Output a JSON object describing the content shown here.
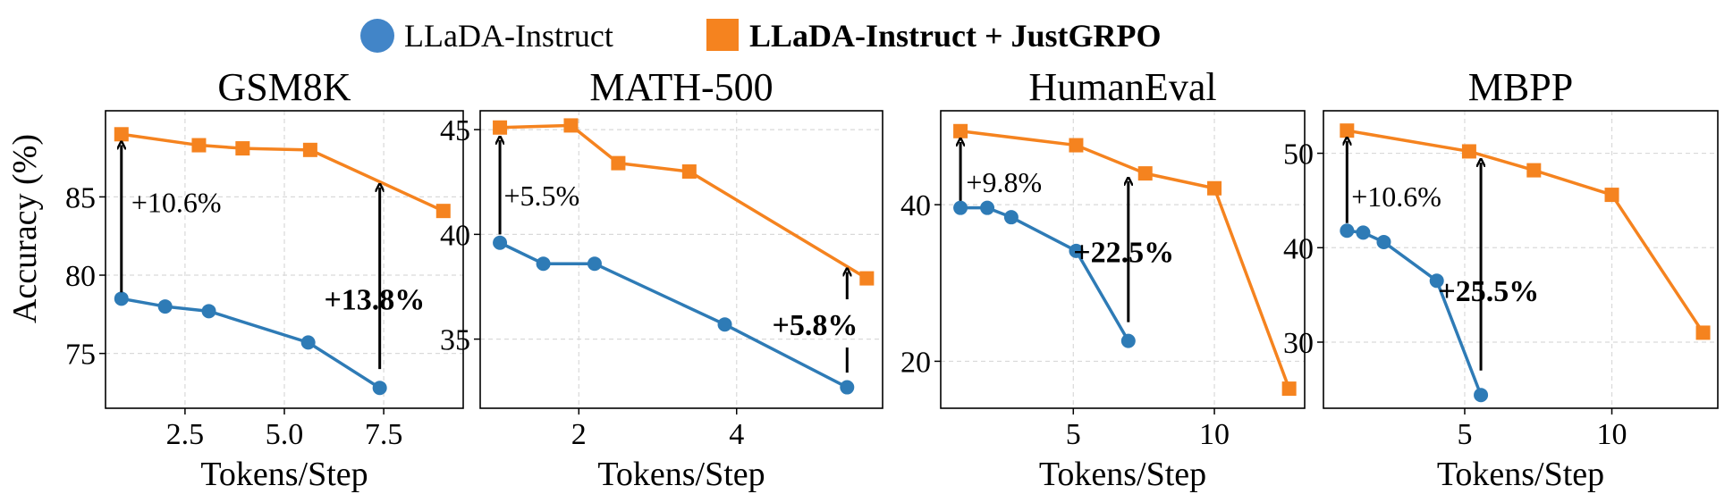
{
  "colors": {
    "base": "#2e7bb6",
    "grpo": "#f5831f",
    "legend_base": "#4285c8",
    "grid": "#d9d9d9",
    "arrow": "#000000"
  },
  "legend": {
    "items": [
      {
        "label": "LLaDA-Instruct",
        "marker": "circle",
        "bold": false
      },
      {
        "label": "LLaDA-Instruct + JustGRPO",
        "marker": "square",
        "bold": true
      }
    ]
  },
  "y_axis_label": "Accuracy (%)",
  "chart_data": [
    {
      "type": "line",
      "title": "GSM8K",
      "xlabel": "Tokens/Step",
      "ylabel": "Accuracy (%)",
      "xlim": [
        0.5,
        9.5
      ],
      "ylim": [
        71.5,
        90.5
      ],
      "xticks": [
        2.5,
        5.0,
        7.5
      ],
      "xticklabels": [
        "2.5",
        "5.0",
        "7.5"
      ],
      "yticks": [
        75,
        80,
        85
      ],
      "yticklabels": [
        "75",
        "80",
        "85"
      ],
      "grid": true,
      "series": [
        {
          "name": "LLaDA-Instruct",
          "marker": "circle",
          "x": [
            0.9,
            2.0,
            3.1,
            5.6,
            7.4
          ],
          "y": [
            78.5,
            78.0,
            77.7,
            75.7,
            72.8
          ]
        },
        {
          "name": "LLaDA-Instruct + JustGRPO",
          "marker": "square",
          "x": [
            0.9,
            2.85,
            3.95,
            5.65,
            9.0
          ],
          "y": [
            89.0,
            88.3,
            88.1,
            88.0,
            84.1
          ]
        }
      ],
      "annotations": [
        {
          "text": "+10.6%",
          "x": 0.9,
          "from_y": 78.9,
          "to_y": 88.3,
          "text_x": 1.15,
          "text_y": 84.7,
          "bold": false
        },
        {
          "text": "+13.8%",
          "x": 7.4,
          "from_y": 74.0,
          "to_y": 85.6,
          "text_x": 6.0,
          "text_y": 78.5,
          "bold": true
        }
      ]
    },
    {
      "type": "line",
      "title": "MATH-500",
      "xlabel": "Tokens/Step",
      "ylabel": "",
      "xlim": [
        0.75,
        5.85
      ],
      "ylim": [
        31.7,
        45.9
      ],
      "xticks": [
        2,
        4
      ],
      "xticklabels": [
        "2",
        "4"
      ],
      "yticks": [
        35,
        40,
        45
      ],
      "yticklabels": [
        "35",
        "40",
        "45"
      ],
      "grid": true,
      "series": [
        {
          "name": "LLaDA-Instruct",
          "marker": "circle",
          "x": [
            1.0,
            1.55,
            2.2,
            3.85,
            5.4
          ],
          "y": [
            39.6,
            38.6,
            38.6,
            35.7,
            32.7
          ]
        },
        {
          "name": "LLaDA-Instruct + JustGRPO",
          "marker": "square",
          "x": [
            1.0,
            1.9,
            2.5,
            3.4,
            5.65
          ],
          "y": [
            45.1,
            45.2,
            43.4,
            43.0,
            37.9
          ]
        }
      ],
      "annotations": [
        {
          "text": "+5.5%",
          "x": 1.0,
          "from_y": 40.0,
          "to_y": 44.5,
          "text_x": 1.05,
          "text_y": 41.9,
          "bold": false
        },
        {
          "text": "+5.8%",
          "x": 5.4,
          "from_y": 36.9,
          "to_y": 38.2,
          "text_x": 4.45,
          "text_y": 35.7,
          "bold": true
        }
      ],
      "lower_stub": {
        "x": 5.4,
        "from_y": 33.4,
        "to_y": 34.6
      }
    },
    {
      "type": "line",
      "title": "HumanEval",
      "xlabel": "Tokens/Step",
      "ylabel": "",
      "xlim": [
        0.3,
        13.2
      ],
      "ylim": [
        14.0,
        52.0
      ],
      "xticks": [
        5,
        10
      ],
      "xticklabels": [
        "5",
        "10"
      ],
      "yticks": [
        20,
        40
      ],
      "yticklabels": [
        "20",
        "40"
      ],
      "grid": true,
      "series": [
        {
          "name": "LLaDA-Instruct",
          "marker": "circle",
          "x": [
            1.0,
            1.95,
            2.8,
            5.1,
            6.95
          ],
          "y": [
            39.6,
            39.6,
            38.4,
            34.1,
            22.6
          ]
        },
        {
          "name": "LLaDA-Instruct + JustGRPO",
          "marker": "square",
          "x": [
            1.0,
            5.1,
            7.55,
            10.0,
            12.65
          ],
          "y": [
            49.4,
            47.6,
            44.0,
            42.1,
            16.5
          ]
        }
      ],
      "annotations": [
        {
          "text": "+9.8%",
          "x": 1.0,
          "from_y": 40.5,
          "to_y": 48.0,
          "text_x": 1.2,
          "text_y": 43.0,
          "bold": false
        },
        {
          "text": "+22.5%",
          "x": 6.95,
          "from_y": 25.0,
          "to_y": 43.0,
          "text_x": 5.0,
          "text_y": 34.0,
          "bold": true
        }
      ]
    },
    {
      "type": "line",
      "title": "MBPP",
      "xlabel": "Tokens/Step",
      "ylabel": "",
      "xlim": [
        0.2,
        13.6
      ],
      "ylim": [
        23.0,
        54.5
      ],
      "xticks": [
        5,
        10
      ],
      "xticklabels": [
        "5",
        "10"
      ],
      "yticks": [
        30,
        40,
        50
      ],
      "yticklabels": [
        "30",
        "40",
        "50"
      ],
      "grid": true,
      "series": [
        {
          "name": "LLaDA-Instruct",
          "marker": "circle",
          "x": [
            1.0,
            1.55,
            2.25,
            4.05,
            5.55
          ],
          "y": [
            41.8,
            41.6,
            40.6,
            36.5,
            24.4
          ]
        },
        {
          "name": "LLaDA-Instruct + JustGRPO",
          "marker": "square",
          "x": [
            1.0,
            5.15,
            7.35,
            10.0,
            13.1
          ],
          "y": [
            52.4,
            50.2,
            48.2,
            45.6,
            31.0
          ]
        }
      ],
      "annotations": [
        {
          "text": "+10.6%",
          "x": 1.0,
          "from_y": 42.6,
          "to_y": 51.3,
          "text_x": 1.15,
          "text_y": 45.5,
          "bold": false
        },
        {
          "text": "+25.5%",
          "x": 5.55,
          "from_y": 27.0,
          "to_y": 49.0,
          "text_x": 4.1,
          "text_y": 35.5,
          "bold": true
        }
      ]
    }
  ]
}
